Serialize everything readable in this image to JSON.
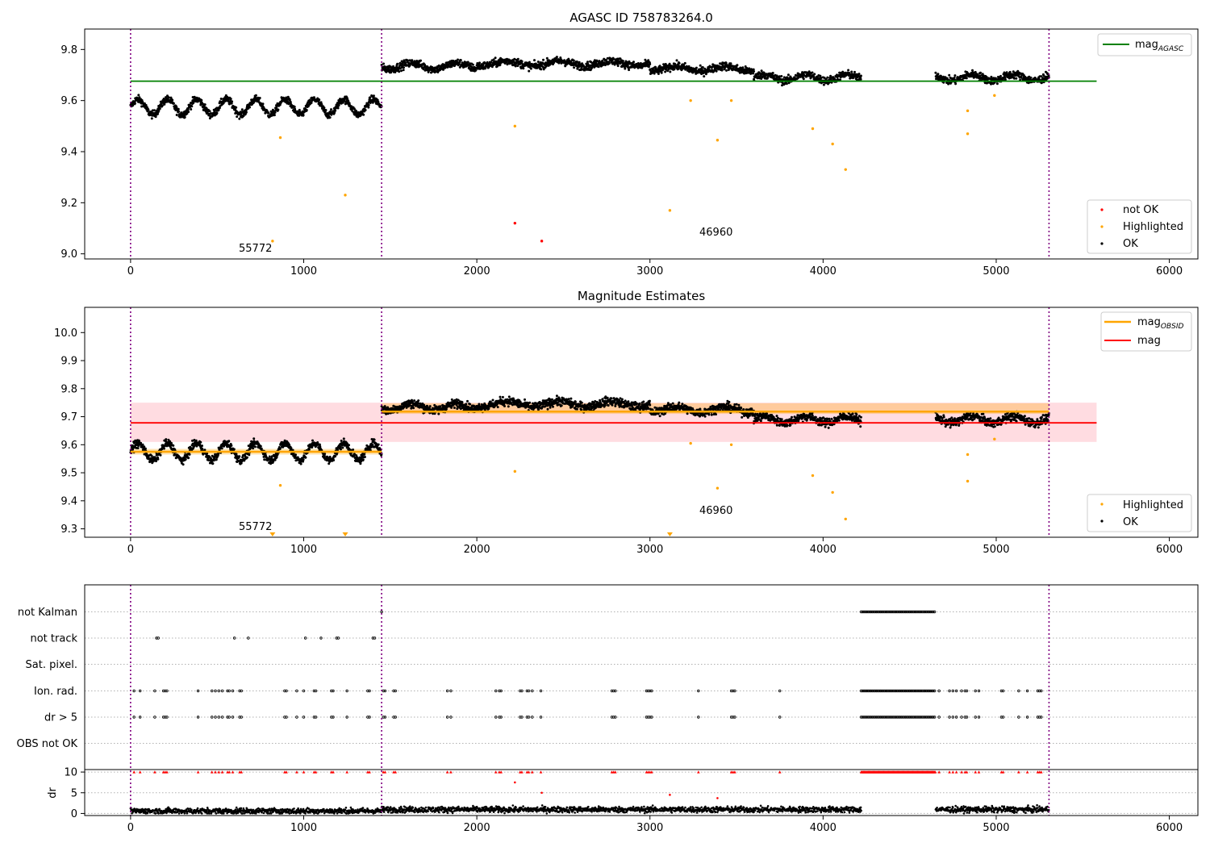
{
  "chart_data": [
    {
      "type": "scatter",
      "title": "AGASC ID 758783264.0",
      "xlim": [
        -265,
        6165
      ],
      "ylim": [
        8.98,
        9.88
      ],
      "xticks": [
        0,
        1000,
        2000,
        3000,
        4000,
        5000,
        6000
      ],
      "yticks": [
        9.0,
        9.2,
        9.4,
        9.6,
        9.8
      ],
      "ytick_labels": [
        "9.0",
        "9.2",
        "9.4",
        "9.6",
        "9.8"
      ],
      "vlines": [
        0,
        1450,
        5305
      ],
      "hlines": [
        {
          "name": "mag_AGASC",
          "y": 9.676,
          "x0": 0,
          "x1": 5580,
          "color": "#008000"
        }
      ],
      "legend_lines": {
        "position": "top-right",
        "entries": [
          {
            "label": "mag",
            "sub": "AGASC",
            "color": "#008000"
          }
        ]
      },
      "legend_points": {
        "position": "bottom-right",
        "entries": [
          {
            "label": "not OK",
            "color": "#ff0000"
          },
          {
            "label": "Highlighted",
            "color": "#ffa500"
          },
          {
            "label": "OK",
            "color": "#000000"
          }
        ]
      },
      "annotations": [
        {
          "text": "55772",
          "x": 620,
          "y": 9.0
        },
        {
          "text": "46960",
          "x": 3270,
          "y": 9.07
        }
      ],
      "segments": [
        {
          "x0": 0,
          "x1": 1450,
          "mean": 9.575,
          "amp": 0.03,
          "period": 170,
          "noise": 0.012
        },
        {
          "x0": 1450,
          "x1": 2000,
          "mean": 9.735,
          "amp": 0.012,
          "period": 260,
          "noise": 0.013
        },
        {
          "x0": 2000,
          "x1": 3000,
          "mean": 9.745,
          "amp": 0.01,
          "period": 300,
          "noise": 0.013
        },
        {
          "x0": 3000,
          "x1": 3600,
          "mean": 9.725,
          "amp": 0.01,
          "period": 280,
          "noise": 0.013
        },
        {
          "x0": 3600,
          "x1": 4220,
          "mean": 9.69,
          "amp": 0.012,
          "period": 240,
          "noise": 0.013
        },
        {
          "x0": 4650,
          "x1": 5305,
          "mean": 9.69,
          "amp": 0.012,
          "period": 240,
          "noise": 0.013
        }
      ],
      "highlighted": [
        [
          820,
          9.05
        ],
        [
          865,
          9.455
        ],
        [
          1240,
          9.23
        ],
        [
          2220,
          9.5
        ],
        [
          3115,
          9.17
        ],
        [
          3235,
          9.6
        ],
        [
          3390,
          9.445
        ],
        [
          3470,
          9.6
        ],
        [
          3940,
          9.49
        ],
        [
          4055,
          9.43
        ],
        [
          4130,
          9.33
        ],
        [
          4835,
          9.56
        ],
        [
          4835,
          9.47
        ],
        [
          4990,
          9.62
        ]
      ],
      "not_ok": [
        [
          2220,
          9.12
        ],
        [
          2375,
          9.05
        ]
      ]
    },
    {
      "type": "scatter",
      "title": "Magnitude Estimates",
      "xlim": [
        -265,
        6165
      ],
      "ylim": [
        9.27,
        10.09
      ],
      "xticks": [
        0,
        1000,
        2000,
        3000,
        4000,
        5000,
        6000
      ],
      "yticks": [
        9.3,
        9.4,
        9.5,
        9.6,
        9.7,
        9.8,
        9.9,
        10.0
      ],
      "ytick_labels": [
        "9.3",
        "9.4",
        "9.5",
        "9.6",
        "9.7",
        "9.8",
        "9.9",
        "10.0"
      ],
      "vlines": [
        0,
        1450,
        5305
      ],
      "band": {
        "y0": 9.61,
        "y1": 9.75,
        "x0": 0,
        "x1": 5580,
        "color": "#ffc0c8"
      },
      "mag_line": {
        "y": 9.678,
        "x0": 0,
        "x1": 5580,
        "color": "#ff0000"
      },
      "obsid_segments": [
        {
          "x0": 0,
          "x1": 1450,
          "y": 9.575,
          "lo": 9.565,
          "hi": 9.585
        },
        {
          "x0": 1450,
          "x1": 5305,
          "y": 9.718,
          "lo": 9.71,
          "hi": 9.748
        }
      ],
      "legend_lines": {
        "position": "top-right",
        "entries": [
          {
            "label": "mag",
            "sub": "OBSID",
            "color": "#ffa500"
          },
          {
            "label": "mag",
            "sub": "",
            "color": "#ff0000"
          }
        ]
      },
      "legend_points": {
        "position": "bottom-right",
        "entries": [
          {
            "label": "Highlighted",
            "color": "#ffa500"
          },
          {
            "label": "OK",
            "color": "#000000"
          }
        ]
      },
      "annotations": [
        {
          "text": "55772",
          "x": 620,
          "y": 9.3
        },
        {
          "text": "46960",
          "x": 3270,
          "y": 9.36
        }
      ],
      "segments": [
        {
          "x0": 0,
          "x1": 1450,
          "mean": 9.575,
          "amp": 0.03,
          "period": 170,
          "noise": 0.012
        },
        {
          "x0": 1450,
          "x1": 2000,
          "mean": 9.735,
          "amp": 0.012,
          "period": 260,
          "noise": 0.013
        },
        {
          "x0": 2000,
          "x1": 3000,
          "mean": 9.745,
          "amp": 0.01,
          "period": 300,
          "noise": 0.013
        },
        {
          "x0": 3000,
          "x1": 3600,
          "mean": 9.725,
          "amp": 0.01,
          "period": 280,
          "noise": 0.013
        },
        {
          "x0": 3600,
          "x1": 4220,
          "mean": 9.69,
          "amp": 0.012,
          "period": 240,
          "noise": 0.013
        },
        {
          "x0": 4650,
          "x1": 5305,
          "mean": 9.69,
          "amp": 0.012,
          "period": 240,
          "noise": 0.013
        }
      ],
      "highlighted": [
        [
          865,
          9.455
        ],
        [
          2220,
          9.505
        ],
        [
          3235,
          9.605
        ],
        [
          3390,
          9.445
        ],
        [
          3470,
          9.6
        ],
        [
          3940,
          9.49
        ],
        [
          4055,
          9.43
        ],
        [
          4130,
          9.335
        ],
        [
          4835,
          9.565
        ],
        [
          4835,
          9.47
        ],
        [
          4990,
          9.62
        ]
      ],
      "below_axis_markers": [
        820,
        1240,
        3115
      ]
    },
    {
      "type": "scatter",
      "title": "",
      "xlim": [
        -265,
        6165
      ],
      "xticks": [
        0,
        1000,
        2000,
        3000,
        4000,
        5000,
        6000
      ],
      "vlines": [
        0,
        1450,
        5305
      ],
      "flag_rows": [
        "not Kalman",
        "not track",
        "Sat. pixel.",
        "Ion. rad.",
        "dr > 5",
        "OBS not OK"
      ],
      "flags": {
        "not Kalman": {
          "ranges": [
            [
              4220,
              4650
            ]
          ],
          "points": [
            1450
          ]
        },
        "not track": {
          "ranges": [],
          "points": [
            150,
            160,
            600,
            680,
            1010,
            1100,
            1190,
            1200,
            1400,
            1410
          ]
        },
        "Sat. pixel.": {
          "ranges": [],
          "points": []
        },
        "Ion. rad.": {
          "ranges": [
            [
              4220,
              4650
            ]
          ],
          "points": [
            20,
            55,
            140,
            190,
            200,
            210,
            390,
            470,
            490,
            510,
            530,
            560,
            570,
            590,
            630,
            640,
            890,
            900,
            960,
            1000,
            1060,
            1070,
            1160,
            1170,
            1250,
            1370,
            1380,
            1460,
            1470,
            1520,
            1530,
            1830,
            1850,
            2110,
            2130,
            2140,
            2250,
            2260,
            2290,
            2300,
            2320,
            2370,
            2780,
            2790,
            2800,
            2980,
            2990,
            3000,
            3010,
            3280,
            3470,
            3480,
            3490,
            3750,
            4670,
            4730,
            4750,
            4770,
            4800,
            4820,
            4830,
            4880,
            4900,
            5030,
            5040,
            5130,
            5180,
            5240,
            5250,
            5260
          ]
        },
        "dr > 5": {
          "ranges": [
            [
              4220,
              4650
            ]
          ],
          "points": [
            20,
            55,
            140,
            190,
            200,
            210,
            390,
            470,
            490,
            510,
            530,
            560,
            570,
            590,
            630,
            640,
            890,
            900,
            960,
            1000,
            1060,
            1070,
            1160,
            1170,
            1250,
            1370,
            1380,
            1460,
            1470,
            1520,
            1530,
            1830,
            1850,
            2110,
            2130,
            2140,
            2250,
            2260,
            2290,
            2300,
            2320,
            2370,
            2780,
            2790,
            2800,
            2980,
            2990,
            3000,
            3010,
            3280,
            3470,
            3480,
            3490,
            3750,
            4670,
            4730,
            4750,
            4770,
            4800,
            4820,
            4830,
            4880,
            4900,
            5030,
            5040,
            5130,
            5180,
            5240,
            5250,
            5260
          ]
        },
        "OBS not OK": {
          "ranges": [],
          "points": []
        }
      },
      "dr": {
        "ylabel": "dr",
        "ylim": [
          -0.5,
          10.6
        ],
        "yticks": [
          0,
          5,
          10
        ],
        "ytick_labels": [
          "0",
          "5",
          "10"
        ],
        "clip": 10,
        "baseline_segments": [
          [
            0,
            1450,
            0.6
          ],
          [
            1450,
            4220,
            0.95
          ],
          [
            4650,
            5305,
            0.95
          ]
        ],
        "outliers": [
          [
            2220,
            7.5
          ],
          [
            2375,
            5.0
          ],
          [
            3115,
            4.5
          ],
          [
            3390,
            3.7
          ]
        ]
      }
    }
  ]
}
